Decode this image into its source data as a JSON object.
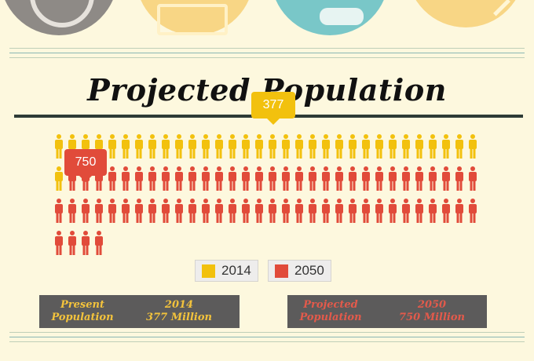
{
  "title": "Projected Population",
  "colors": {
    "y2014": "#F2C10E",
    "y2050": "#E14B3A",
    "bg": "#FDF8DE"
  },
  "chart_data": {
    "type": "pictogram",
    "series": [
      {
        "name": "2014",
        "value": 377
      },
      {
        "name": "2050",
        "value": 750
      }
    ],
    "icon_rows": [
      {
        "yellow": 32,
        "red": 0
      },
      {
        "yellow": 1,
        "red": 31
      },
      {
        "yellow": 0,
        "red": 32
      },
      {
        "yellow": 0,
        "red": 4
      }
    ]
  },
  "callouts": {
    "c2014": "377",
    "c2050": "750"
  },
  "legend": [
    {
      "label": "2014"
    },
    {
      "label": "2050"
    }
  ],
  "summary": {
    "present": {
      "label_1": "Present",
      "label_2": "Population",
      "year": "2014",
      "amount": "377 Million"
    },
    "projected": {
      "label_1": "Projected",
      "label_2": "Population",
      "year": "2050",
      "amount": "750 Million"
    }
  }
}
